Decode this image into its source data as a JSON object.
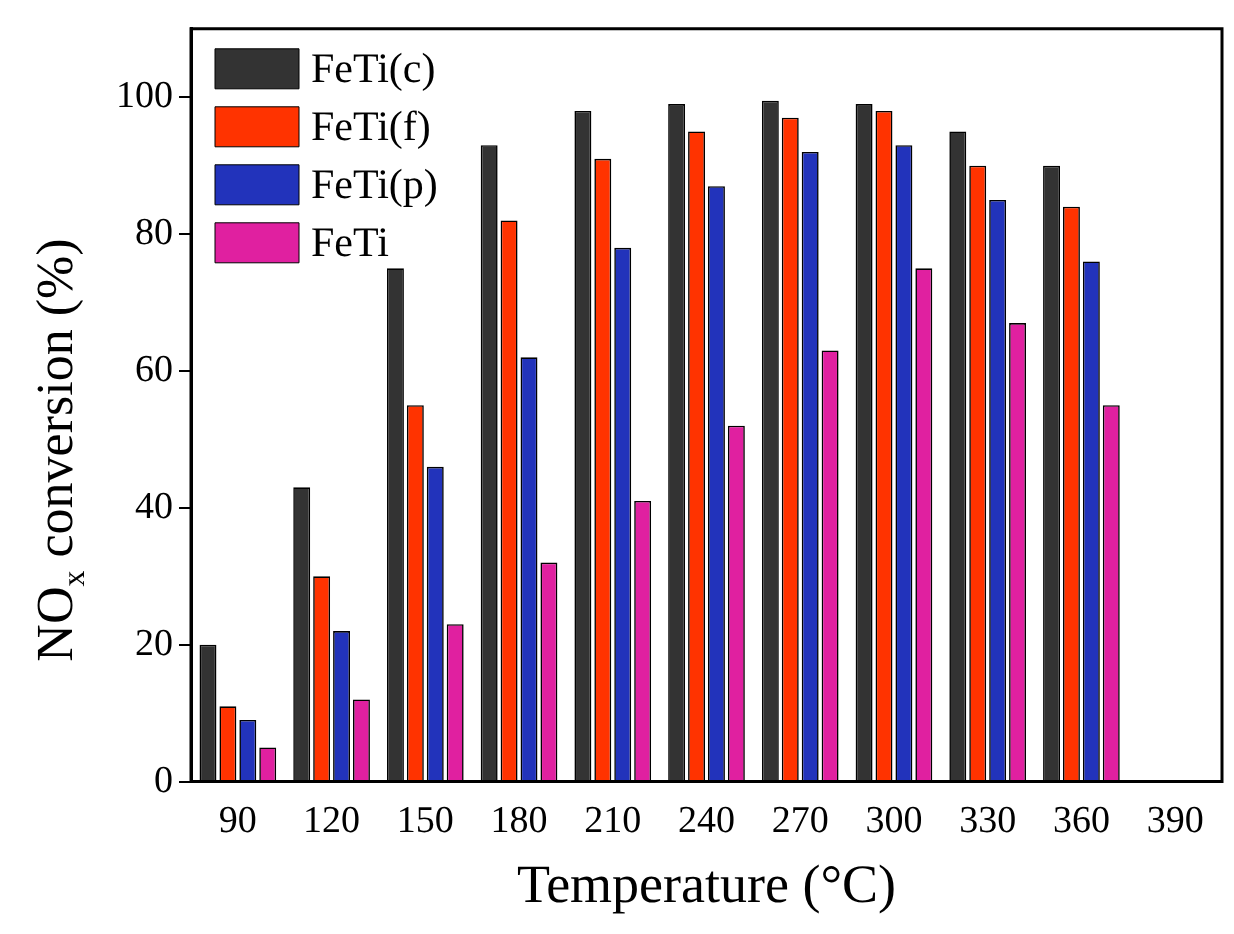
{
  "chart_data": {
    "type": "bar",
    "categories": [
      "90",
      "120",
      "150",
      "180",
      "210",
      "240",
      "270",
      "300",
      "330",
      "360",
      "390"
    ],
    "series": [
      {
        "name": "FeTi(c)",
        "color": "#333333",
        "values": [
          20,
          43,
          75,
          93,
          98,
          99,
          99.5,
          99,
          95,
          90,
          null
        ]
      },
      {
        "name": "FeTi(f)",
        "color": "#ff3300",
        "values": [
          11,
          30,
          55,
          82,
          91,
          95,
          97,
          98,
          90,
          84,
          null
        ]
      },
      {
        "name": "FeTi(p)",
        "color": "#2233bb",
        "values": [
          9,
          22,
          46,
          62,
          78,
          87,
          92,
          93,
          85,
          76,
          null
        ]
      },
      {
        "name": "FeTi",
        "color": "#e020a0",
        "values": [
          5,
          12,
          23,
          32,
          41,
          52,
          63,
          75,
          67,
          55,
          null
        ]
      }
    ],
    "xlabel": "Temperature (°C)",
    "ylabel": "NO$_{x}$ conversion (%)",
    "ylim": [
      0,
      110
    ],
    "yticks": [
      0,
      20,
      40,
      60,
      80,
      100
    ],
    "legend": "top left",
    "grid": false
  }
}
